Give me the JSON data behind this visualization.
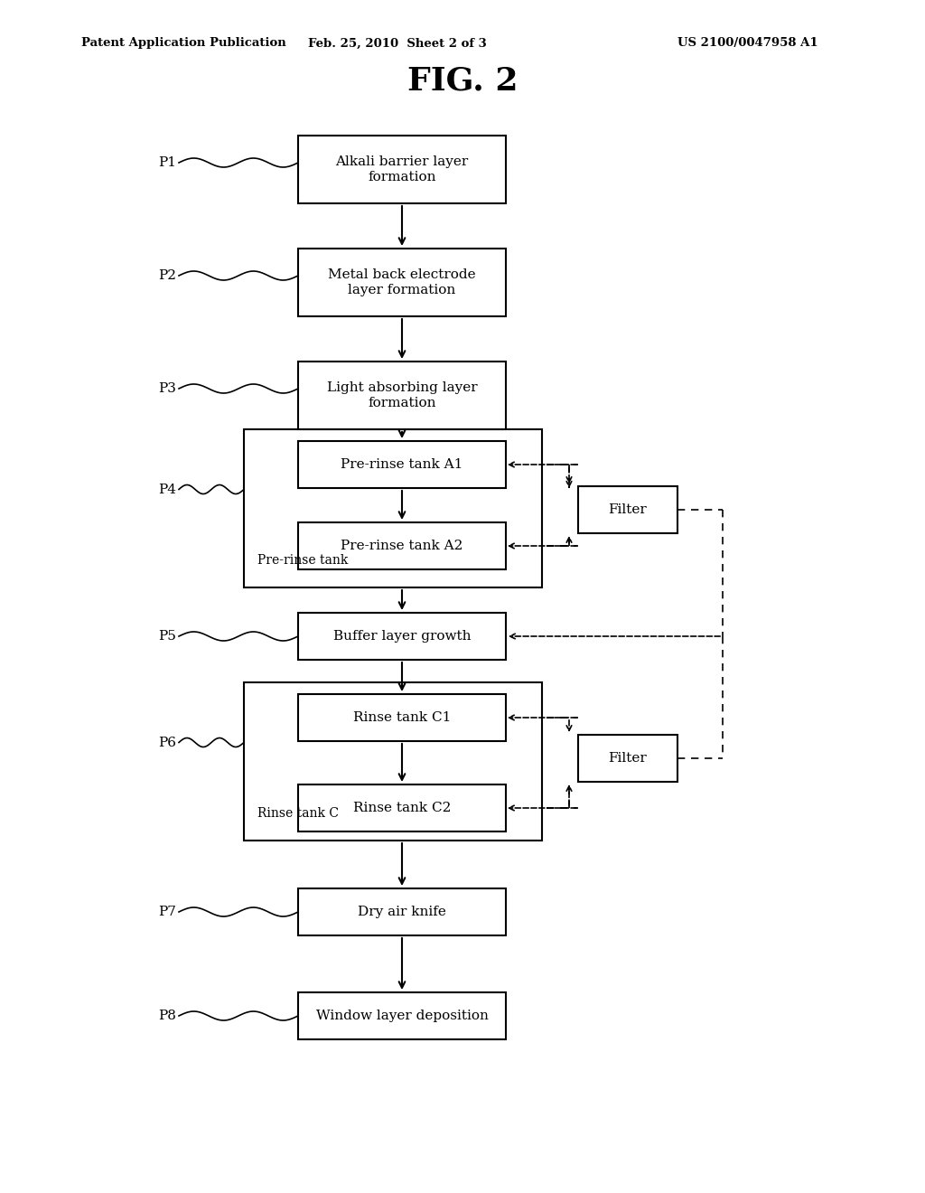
{
  "title": "FIG. 2",
  "header_left": "Patent Application Publication",
  "header_center": "Feb. 25, 2010  Sheet 2 of 3",
  "header_right": "US 2100/0047958 A1",
  "background": "#ffffff"
}
